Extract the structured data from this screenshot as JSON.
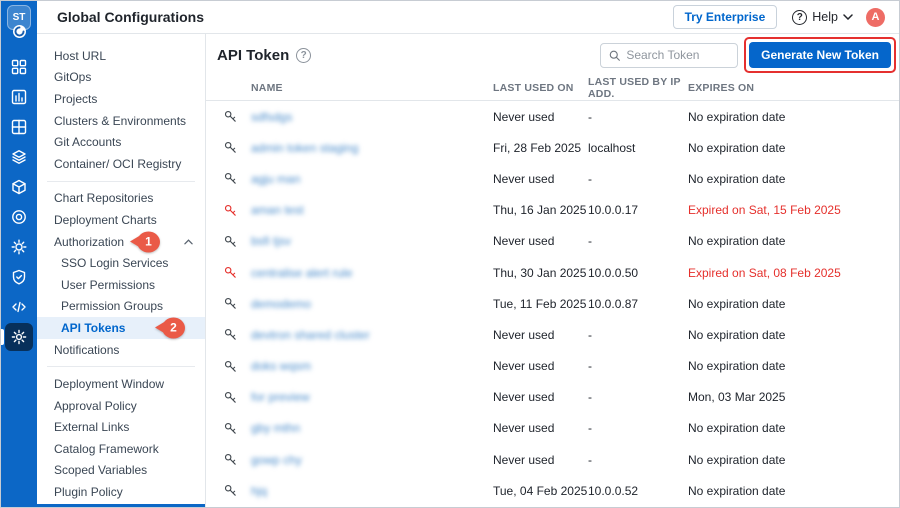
{
  "colors": {
    "accent": "#0066CC",
    "rail": "#0C67C6",
    "annotation_pin": "#EA5A47",
    "annotation_rect": "#E5302F",
    "expired_red": "#E5302C",
    "active_item_bg": "#E7F0FA",
    "avatar_bg": "#EE6C65"
  },
  "rail": {
    "logo_text": "ST",
    "icons": [
      "apps-grid-icon",
      "chart-icon",
      "window-grid-icon",
      "stack-icon",
      "cube-icon",
      "bullseye-icon",
      "gear-flower-icon",
      "shield-check-icon",
      "code-icon",
      "gear-icon"
    ]
  },
  "topbar": {
    "title": "Global Configurations",
    "try_enterprise_label": "Try Enterprise",
    "help_label": "Help",
    "help_icon": "?",
    "avatar_letter": "A"
  },
  "sidebar": {
    "group1": [
      "Host URL",
      "GitOps",
      "Projects",
      "Clusters & Environments",
      "Git Accounts",
      "Container/ OCI Registry"
    ],
    "group2_pre": [
      "Chart Repositories",
      "Deployment Charts"
    ],
    "authorization": {
      "label": "Authorization",
      "annotation": "1",
      "expanded": true
    },
    "auth_children": [
      "SSO Login Services",
      "User Permissions",
      "Permission Groups"
    ],
    "api_tokens": {
      "label": "API Tokens",
      "annotation": "2",
      "active": true
    },
    "notifications": "Notifications",
    "group3": [
      "Deployment Window",
      "Approval Policy",
      "External Links",
      "Catalog Framework",
      "Scoped Variables",
      "Plugin Policy"
    ]
  },
  "main": {
    "title": "API Token",
    "help_icon": "?",
    "search_placeholder": "Search Token",
    "generate_button_label": "Generate New Token"
  },
  "table": {
    "headers": [
      "NAME",
      "LAST USED ON",
      "LAST USED BY IP ADD.",
      "EXPIRES ON"
    ],
    "names_blurred": true,
    "rows": [
      {
        "name": "sdfsdgs",
        "last_used": "Never used",
        "ip": "-",
        "expires": "No expiration date",
        "expired": false
      },
      {
        "name": "admin token staging",
        "last_used": "Fri, 28 Feb 2025",
        "ip": "localhost",
        "expires": "No expiration date",
        "expired": false
      },
      {
        "name": "agju man",
        "last_used": "Never used",
        "ip": "-",
        "expires": "No expiration date",
        "expired": false
      },
      {
        "name": "aman test",
        "last_used": "Thu, 16 Jan 2025",
        "ip": "10.0.0.17",
        "expires": "Expired on Sat, 15 Feb 2025",
        "expired": true
      },
      {
        "name": "bsfi tjsv",
        "last_used": "Never used",
        "ip": "-",
        "expires": "No expiration date",
        "expired": false
      },
      {
        "name": "centralise alert rule",
        "last_used": "Thu, 30 Jan 2025",
        "ip": "10.0.0.50",
        "expires": "Expired on Sat, 08 Feb 2025",
        "expired": true
      },
      {
        "name": "demodemo",
        "last_used": "Tue, 11 Feb 2025",
        "ip": "10.0.0.87",
        "expires": "No expiration date",
        "expired": false
      },
      {
        "name": "devtron shared cluster",
        "last_used": "Never used",
        "ip": "-",
        "expires": "No expiration date",
        "expired": false
      },
      {
        "name": "doks wqsm",
        "last_used": "Never used",
        "ip": "-",
        "expires": "No expiration date",
        "expired": false
      },
      {
        "name": "for preview",
        "last_used": "Never used",
        "ip": "-",
        "expires": "Mon, 03 Mar 2025",
        "expired": false
      },
      {
        "name": "gby mthn",
        "last_used": "Never used",
        "ip": "-",
        "expires": "No expiration date",
        "expired": false
      },
      {
        "name": "gowp chy",
        "last_used": "Never used",
        "ip": "-",
        "expires": "No expiration date",
        "expired": false
      },
      {
        "name": "hjq",
        "last_used": "Tue, 04 Feb 2025",
        "ip": "10.0.0.52",
        "expires": "No expiration date",
        "expired": false
      }
    ]
  }
}
